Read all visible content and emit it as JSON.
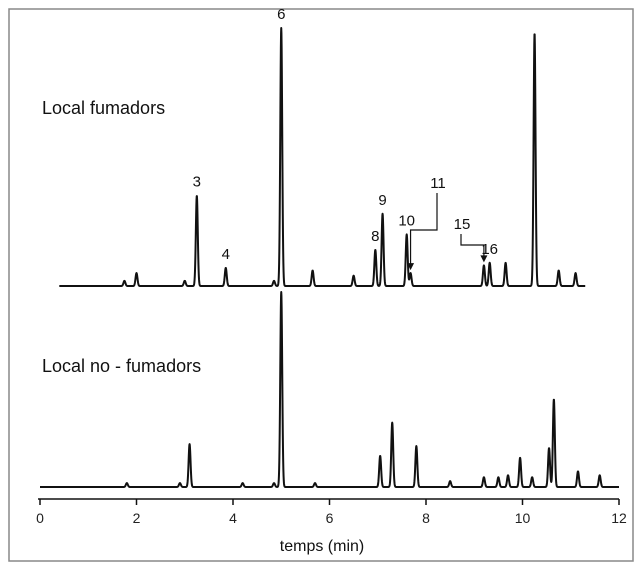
{
  "chart_data": {
    "type": "line",
    "xlabel": "temps (min)",
    "ylabel": "",
    "xlim": [
      0,
      12
    ],
    "x_ticks": [
      "0",
      "2",
      "4",
      "6",
      "8",
      "10",
      "12"
    ],
    "grid": false,
    "series": [
      {
        "name": "Local fumadors",
        "x_range": [
          0.4,
          11.3
        ],
        "peaks": [
          {
            "x": 1.75,
            "h": 0.02,
            "label": ""
          },
          {
            "x": 2.0,
            "h": 0.05,
            "label": ""
          },
          {
            "x": 3.0,
            "h": 0.02,
            "label": ""
          },
          {
            "x": 3.25,
            "h": 0.35,
            "label": "3"
          },
          {
            "x": 3.85,
            "h": 0.07,
            "label": "4"
          },
          {
            "x": 4.85,
            "h": 0.02,
            "label": ""
          },
          {
            "x": 5.0,
            "h": 1.0,
            "label": "6"
          },
          {
            "x": 5.65,
            "h": 0.06,
            "label": ""
          },
          {
            "x": 6.5,
            "h": 0.04,
            "label": ""
          },
          {
            "x": 6.95,
            "h": 0.14,
            "label": "8"
          },
          {
            "x": 7.1,
            "h": 0.28,
            "label": "9"
          },
          {
            "x": 7.6,
            "h": 0.2,
            "label": "10"
          },
          {
            "x": 7.68,
            "h": 0.05,
            "label": "11"
          },
          {
            "x": 9.2,
            "h": 0.08,
            "label": "15"
          },
          {
            "x": 9.32,
            "h": 0.09,
            "label": "16"
          },
          {
            "x": 9.65,
            "h": 0.09,
            "label": ""
          },
          {
            "x": 10.25,
            "h": 0.98,
            "label": ""
          },
          {
            "x": 10.75,
            "h": 0.06,
            "label": ""
          },
          {
            "x": 11.1,
            "h": 0.05,
            "label": ""
          }
        ]
      },
      {
        "name": "Local no - fumadors",
        "x_range": [
          0.0,
          12.0
        ],
        "peaks": [
          {
            "x": 1.8,
            "h": 0.02,
            "label": ""
          },
          {
            "x": 2.9,
            "h": 0.02,
            "label": ""
          },
          {
            "x": 3.1,
            "h": 0.22,
            "label": ""
          },
          {
            "x": 4.2,
            "h": 0.02,
            "label": ""
          },
          {
            "x": 4.85,
            "h": 0.02,
            "label": ""
          },
          {
            "x": 5.0,
            "h": 1.0,
            "label": ""
          },
          {
            "x": 5.7,
            "h": 0.02,
            "label": ""
          },
          {
            "x": 7.05,
            "h": 0.16,
            "label": ""
          },
          {
            "x": 7.3,
            "h": 0.33,
            "label": ""
          },
          {
            "x": 7.8,
            "h": 0.21,
            "label": ""
          },
          {
            "x": 8.5,
            "h": 0.03,
            "label": ""
          },
          {
            "x": 9.2,
            "h": 0.05,
            "label": ""
          },
          {
            "x": 9.5,
            "h": 0.05,
            "label": ""
          },
          {
            "x": 9.7,
            "h": 0.06,
            "label": ""
          },
          {
            "x": 9.95,
            "h": 0.15,
            "label": ""
          },
          {
            "x": 10.2,
            "h": 0.05,
            "label": ""
          },
          {
            "x": 10.55,
            "h": 0.2,
            "label": ""
          },
          {
            "x": 10.65,
            "h": 0.45,
            "label": ""
          },
          {
            "x": 11.15,
            "h": 0.08,
            "label": ""
          },
          {
            "x": 11.6,
            "h": 0.06,
            "label": ""
          }
        ]
      }
    ],
    "arrow_annotations": [
      "11",
      "15"
    ]
  }
}
